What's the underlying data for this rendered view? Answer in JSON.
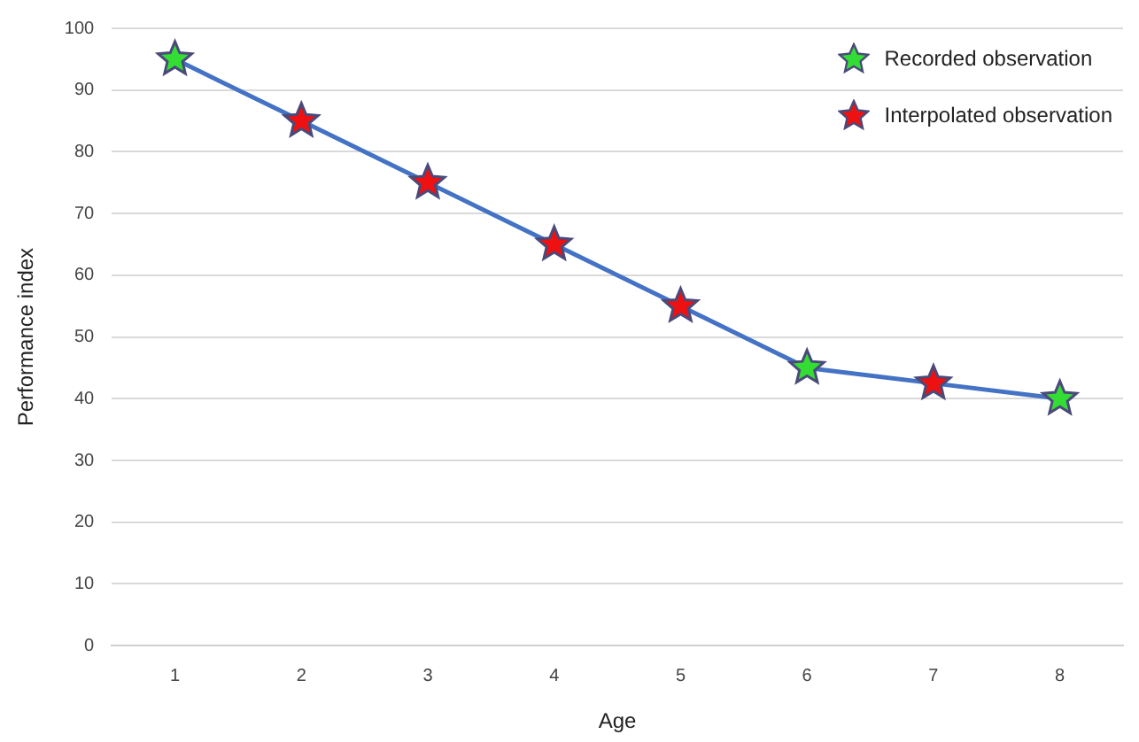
{
  "chart_data": {
    "type": "line",
    "xlabel": "Age",
    "ylabel": "Performance index",
    "categories": [
      "1",
      "2",
      "3",
      "4",
      "5",
      "6",
      "7",
      "8"
    ],
    "series": [
      {
        "color": "#4472c4",
        "marker": "none",
        "values": [
          95,
          85,
          75,
          65,
          55,
          45,
          42.5,
          40
        ]
      },
      {
        "type": "scatter",
        "name": "Recorded observation",
        "color": "#33dd33",
        "marker": "star",
        "x": [
          "1",
          "6",
          "8"
        ],
        "values": [
          95,
          45,
          40
        ]
      },
      {
        "type": "scatter",
        "name": "Interpolated observation",
        "color": "#ee1111",
        "marker": "star",
        "x": [
          "2",
          "3",
          "4",
          "5",
          "7"
        ],
        "values": [
          85,
          75,
          65,
          55,
          42.5
        ]
      }
    ],
    "ylim": [
      0,
      100
    ],
    "yticks": [
      0,
      10,
      20,
      30,
      40,
      50,
      60,
      70,
      80,
      90,
      100
    ],
    "grid": "y",
    "legend": "top right"
  }
}
